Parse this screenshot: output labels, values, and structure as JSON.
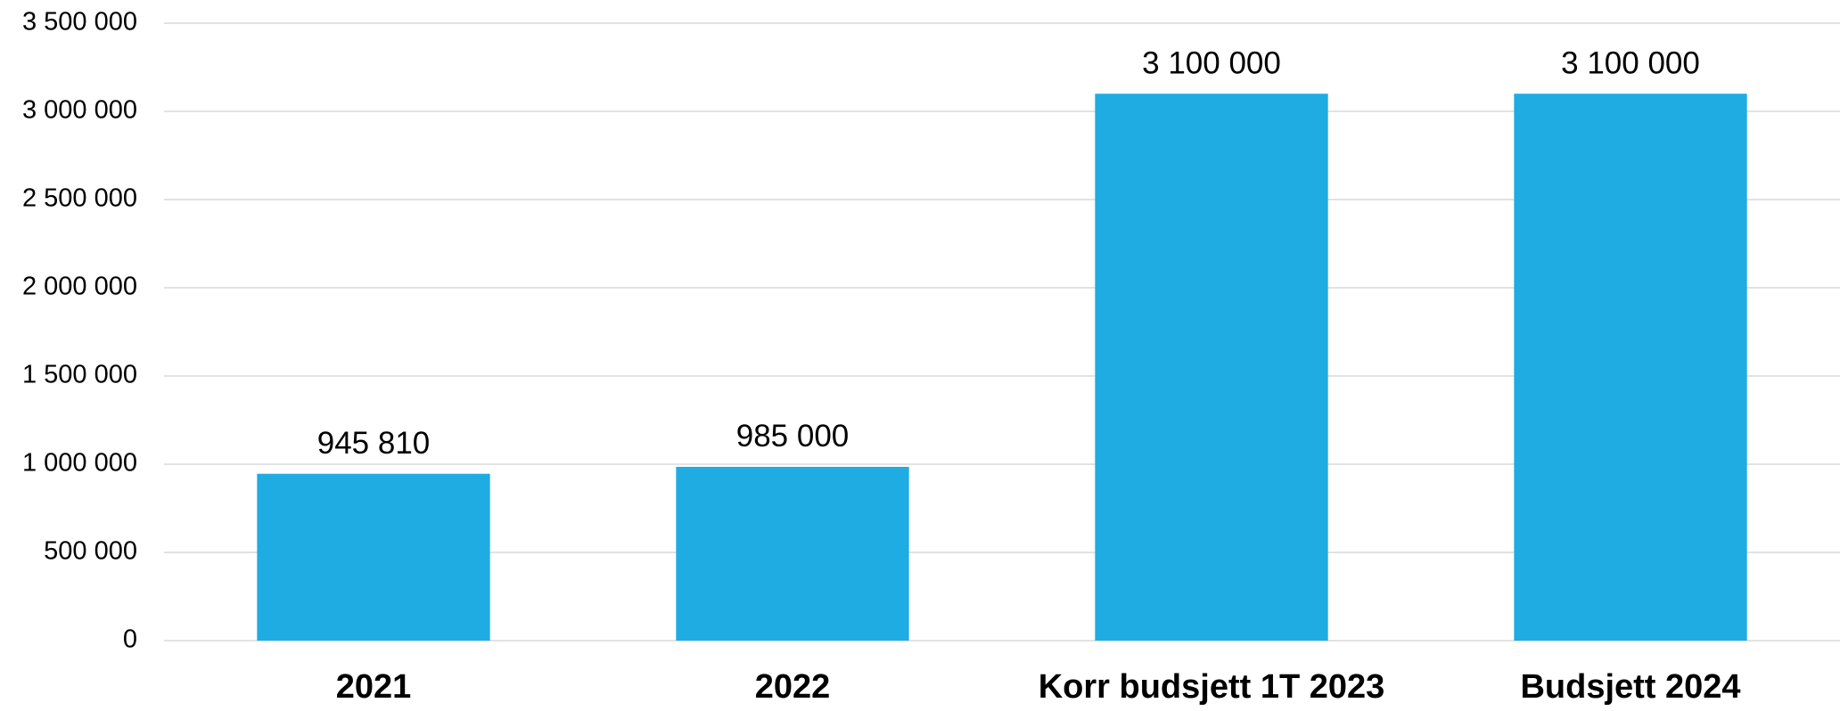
{
  "chart_data": {
    "type": "bar",
    "categories": [
      "2021",
      "2022",
      "Korr budsjett 1T 2023",
      "Budsjett 2024"
    ],
    "values": [
      945810,
      985000,
      3100000,
      3100000
    ],
    "value_labels": [
      "945 810",
      "985 000",
      "3 100 000",
      "3 100 000"
    ],
    "color": "#1facE3",
    "ylim": [
      0,
      3500000
    ],
    "yticks": [
      0,
      {
        "value": 500000,
        "label": "500 000"
      },
      {
        "value": 1000000,
        "label": "1 000 000"
      },
      {
        "value": 1500000,
        "label": "1 500 000"
      },
      {
        "value": 2000000,
        "label": "2 000 000"
      },
      {
        "value": 2500000,
        "label": "2 500 000"
      },
      {
        "value": 3000000,
        "label": "3 000 000"
      },
      {
        "value": 3500000,
        "label": "3 500 000"
      }
    ],
    "grid": true
  }
}
